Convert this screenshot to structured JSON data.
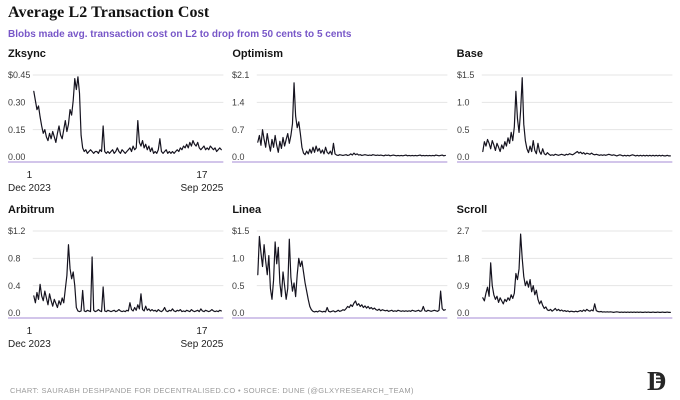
{
  "header": {
    "title": "Average L2 Transaction Cost",
    "subtitle": "Blobs made avg. transaction cost on L2 to drop from 50 cents to 5 cents"
  },
  "footer": {
    "credit": "CHART: SAURABH DESHPANDE FOR DECENTRALISED.CO • SOURCE: DUNE (@GLXYRESEARCH_TEAM)",
    "logo": "decentralised-monogram"
  },
  "colors": {
    "subtitle": "#7857c8",
    "line": "#15131f",
    "baseline": "#c4b2e4",
    "gridline": "#e4e4e4",
    "tick_text": "#3c3c3c",
    "footer_text": "#9a9a9a",
    "logo": "#262626"
  },
  "x_axis": {
    "start_tick": "1",
    "start_label": "Dec 2023",
    "end_tick": "17",
    "end_label": "Sep 2025"
  },
  "chart_data": [
    {
      "type": "line",
      "title": "Zksync",
      "unit": "USD",
      "x_range": [
        "1 Dec 2023",
        "17 Sep 2025"
      ],
      "ylim": [
        0,
        0.45
      ],
      "yticks": [
        0.45,
        0.3,
        0.15,
        0
      ],
      "ytick_labels": [
        "$0.45",
        "0.30",
        "0.15",
        "0.00"
      ],
      "show_x_axis": true,
      "grid": true,
      "legend": "none",
      "values": [
        0.36,
        0.31,
        0.26,
        0.28,
        0.22,
        0.17,
        0.13,
        0.15,
        0.11,
        0.09,
        0.13,
        0.1,
        0.14,
        0.11,
        0.08,
        0.13,
        0.17,
        0.12,
        0.1,
        0.15,
        0.2,
        0.14,
        0.18,
        0.26,
        0.23,
        0.31,
        0.43,
        0.37,
        0.44,
        0.35,
        0.12,
        0.05,
        0.03,
        0.04,
        0.02,
        0.03,
        0.04,
        0.03,
        0.02,
        0.03,
        0.03,
        0.02,
        0.04,
        0.03,
        0.17,
        0.03,
        0.02,
        0.03,
        0.02,
        0.03,
        0.04,
        0.02,
        0.03,
        0.05,
        0.03,
        0.02,
        0.04,
        0.03,
        0.02,
        0.03,
        0.04,
        0.05,
        0.03,
        0.06,
        0.04,
        0.05,
        0.2,
        0.08,
        0.06,
        0.09,
        0.05,
        0.07,
        0.04,
        0.06,
        0.03,
        0.05,
        0.02,
        0.03,
        0.02,
        0.04,
        0.1,
        0.03,
        0.02,
        0.03,
        0.04,
        0.02,
        0.03,
        0.02,
        0.03,
        0.02,
        0.03,
        0.04,
        0.03,
        0.05,
        0.04,
        0.06,
        0.05,
        0.07,
        0.05,
        0.08,
        0.06,
        0.09,
        0.07,
        0.06,
        0.08,
        0.05,
        0.04,
        0.05,
        0.06,
        0.04,
        0.05,
        0.04,
        0.06,
        0.05,
        0.04,
        0.05,
        0.03,
        0.04,
        0.05,
        0.04
      ]
    },
    {
      "type": "line",
      "title": "Optimism",
      "unit": "USD",
      "x_range": [
        "1 Dec 2023",
        "17 Sep 2025"
      ],
      "ylim": [
        0,
        2.1
      ],
      "yticks": [
        2.1,
        1.4,
        0.7,
        0
      ],
      "ytick_labels": [
        "$2.1",
        "1.4",
        "0.7",
        "0.0"
      ],
      "show_x_axis": false,
      "grid": true,
      "legend": "none",
      "values": [
        0.38,
        0.55,
        0.3,
        0.7,
        0.45,
        0.25,
        0.6,
        0.35,
        0.15,
        0.45,
        0.25,
        0.55,
        0.3,
        0.12,
        0.4,
        0.22,
        0.5,
        0.28,
        0.45,
        0.6,
        0.35,
        0.55,
        0.85,
        1.9,
        1.05,
        0.75,
        0.9,
        0.6,
        0.25,
        0.1,
        0.06,
        0.15,
        0.08,
        0.2,
        0.1,
        0.25,
        0.12,
        0.28,
        0.15,
        0.22,
        0.1,
        0.18,
        0.08,
        0.25,
        0.12,
        0.08,
        0.15,
        0.06,
        0.35,
        0.08,
        0.05,
        0.04,
        0.06,
        0.05,
        0.04,
        0.05,
        0.06,
        0.04,
        0.05,
        0.08,
        0.05,
        0.1,
        0.06,
        0.08,
        0.05,
        0.06,
        0.04,
        0.05,
        0.06,
        0.05,
        0.04,
        0.05,
        0.04,
        0.06,
        0.05,
        0.04,
        0.05,
        0.04,
        0.05,
        0.04,
        0.03,
        0.05,
        0.04,
        0.05,
        0.03,
        0.04,
        0.05,
        0.04,
        0.03,
        0.04,
        0.03,
        0.04,
        0.03,
        0.04,
        0.05,
        0.03,
        0.04,
        0.03,
        0.04,
        0.03,
        0.04,
        0.03,
        0.04,
        0.05,
        0.03,
        0.04,
        0.03,
        0.04,
        0.03,
        0.04,
        0.03,
        0.04,
        0.03,
        0.05,
        0.04,
        0.03,
        0.04,
        0.05,
        0.03,
        0.04
      ]
    },
    {
      "type": "line",
      "title": "Base",
      "unit": "USD",
      "x_range": [
        "1 Dec 2023",
        "17 Sep 2025"
      ],
      "ylim": [
        0,
        1.5
      ],
      "yticks": [
        1.5,
        1.0,
        0.5,
        0
      ],
      "ytick_labels": [
        "$1.5",
        "1.0",
        "0.5",
        "0.0"
      ],
      "show_x_axis": false,
      "grid": true,
      "legend": "none",
      "values": [
        0.1,
        0.28,
        0.2,
        0.32,
        0.25,
        0.15,
        0.3,
        0.22,
        0.12,
        0.25,
        0.18,
        0.1,
        0.22,
        0.15,
        0.28,
        0.2,
        0.35,
        0.25,
        0.45,
        0.3,
        0.55,
        1.2,
        0.7,
        0.45,
        0.85,
        1.45,
        0.6,
        0.3,
        0.15,
        0.08,
        0.2,
        0.1,
        0.3,
        0.12,
        0.06,
        0.25,
        0.1,
        0.05,
        0.15,
        0.06,
        0.04,
        0.08,
        0.05,
        0.03,
        0.04,
        0.03,
        0.05,
        0.04,
        0.03,
        0.04,
        0.05,
        0.04,
        0.03,
        0.05,
        0.04,
        0.06,
        0.05,
        0.04,
        0.06,
        0.08,
        0.1,
        0.07,
        0.09,
        0.06,
        0.08,
        0.05,
        0.07,
        0.06,
        0.05,
        0.07,
        0.05,
        0.04,
        0.05,
        0.04,
        0.03,
        0.04,
        0.03,
        0.04,
        0.03,
        0.04,
        0.05,
        0.04,
        0.03,
        0.04,
        0.03,
        0.02,
        0.03,
        0.04,
        0.03,
        0.02,
        0.03,
        0.02,
        0.03,
        0.02,
        0.03,
        0.04,
        0.03,
        0.02,
        0.03,
        0.02,
        0.03,
        0.02,
        0.03,
        0.02,
        0.03,
        0.02,
        0.03,
        0.02,
        0.03,
        0.02,
        0.03,
        0.02,
        0.03,
        0.02,
        0.03,
        0.02,
        0.02,
        0.03,
        0.02,
        0.02
      ]
    },
    {
      "type": "line",
      "title": "Arbitrum",
      "unit": "USD",
      "x_range": [
        "1 Dec 2023",
        "17 Sep 2025"
      ],
      "ylim": [
        0,
        1.2
      ],
      "yticks": [
        1.2,
        0.8,
        0.4,
        0
      ],
      "ytick_labels": [
        "$1.2",
        "0.8",
        "0.4",
        "0.0"
      ],
      "show_x_axis": true,
      "grid": true,
      "legend": "none",
      "values": [
        0.25,
        0.15,
        0.3,
        0.2,
        0.42,
        0.25,
        0.18,
        0.32,
        0.22,
        0.12,
        0.28,
        0.18,
        0.1,
        0.2,
        0.14,
        0.08,
        0.18,
        0.12,
        0.22,
        0.15,
        0.35,
        0.55,
        1.0,
        0.65,
        0.5,
        0.6,
        0.4,
        0.08,
        0.03,
        0.02,
        0.03,
        0.33,
        0.03,
        0.02,
        0.04,
        0.03,
        0.02,
        0.82,
        0.04,
        0.02,
        0.03,
        0.05,
        0.03,
        0.02,
        0.38,
        0.03,
        0.02,
        0.04,
        0.03,
        0.02,
        0.03,
        0.04,
        0.02,
        0.03,
        0.05,
        0.03,
        0.02,
        0.03,
        0.02,
        0.04,
        0.03,
        0.15,
        0.05,
        0.03,
        0.08,
        0.04,
        0.12,
        0.06,
        0.28,
        0.05,
        0.03,
        0.1,
        0.04,
        0.06,
        0.03,
        0.05,
        0.03,
        0.04,
        0.02,
        0.05,
        0.03,
        0.02,
        0.04,
        0.08,
        0.03,
        0.02,
        0.04,
        0.03,
        0.06,
        0.03,
        0.02,
        0.04,
        0.03,
        0.05,
        0.02,
        0.03,
        0.02,
        0.04,
        0.03,
        0.02,
        0.05,
        0.03,
        0.02,
        0.03,
        0.04,
        0.02,
        0.06,
        0.03,
        0.02,
        0.04,
        0.03,
        0.02,
        0.03,
        0.05,
        0.03,
        0.02,
        0.03,
        0.02,
        0.04,
        0.03
      ]
    },
    {
      "type": "line",
      "title": "Linea",
      "unit": "USD",
      "x_range": [
        "1 Dec 2023",
        "17 Sep 2025"
      ],
      "ylim": [
        0,
        1.5
      ],
      "yticks": [
        1.5,
        1.0,
        0.5,
        0
      ],
      "ytick_labels": [
        "$1.5",
        "1.0",
        "0.5",
        "0.0"
      ],
      "show_x_axis": false,
      "grid": true,
      "legend": "none",
      "values": [
        0.7,
        1.4,
        1.1,
        0.85,
        1.25,
        0.95,
        0.7,
        1.05,
        0.45,
        0.25,
        0.6,
        1.3,
        0.9,
        1.2,
        0.55,
        0.3,
        0.75,
        0.5,
        0.25,
        0.45,
        1.35,
        0.65,
        0.4,
        0.55,
        0.3,
        0.7,
        1.0,
        0.85,
        0.95,
        0.75,
        0.55,
        0.4,
        0.25,
        0.12,
        0.06,
        0.03,
        0.02,
        0.03,
        0.02,
        0.04,
        0.03,
        0.02,
        0.03,
        0.02,
        0.1,
        0.03,
        0.02,
        0.03,
        0.04,
        0.02,
        0.03,
        0.05,
        0.03,
        0.04,
        0.06,
        0.05,
        0.08,
        0.12,
        0.1,
        0.15,
        0.12,
        0.18,
        0.22,
        0.14,
        0.17,
        0.12,
        0.15,
        0.1,
        0.13,
        0.09,
        0.12,
        0.08,
        0.1,
        0.07,
        0.09,
        0.06,
        0.05,
        0.07,
        0.04,
        0.06,
        0.05,
        0.04,
        0.05,
        0.03,
        0.04,
        0.05,
        0.03,
        0.04,
        0.03,
        0.05,
        0.04,
        0.03,
        0.04,
        0.03,
        0.04,
        0.03,
        0.04,
        0.03,
        0.05,
        0.04,
        0.03,
        0.04,
        0.05,
        0.03,
        0.04,
        0.12,
        0.04,
        0.03,
        0.05,
        0.04,
        0.03,
        0.04,
        0.05,
        0.04,
        0.03,
        0.05,
        0.4,
        0.08,
        0.05,
        0.06
      ]
    },
    {
      "type": "line",
      "title": "Scroll",
      "unit": "USD",
      "x_range": [
        "1 Dec 2023",
        "17 Sep 2025"
      ],
      "ylim": [
        0,
        2.7
      ],
      "yticks": [
        2.7,
        1.8,
        0.9,
        0
      ],
      "ytick_labels": [
        "2.7",
        "1.8",
        "0.9",
        "0.0"
      ],
      "show_x_axis": false,
      "grid": true,
      "legend": "none",
      "values": [
        0.5,
        0.4,
        0.65,
        0.85,
        0.55,
        1.65,
        0.9,
        0.6,
        0.45,
        0.55,
        0.35,
        0.5,
        0.4,
        0.3,
        0.45,
        0.38,
        0.5,
        0.42,
        0.6,
        0.48,
        0.65,
        1.3,
        1.1,
        1.45,
        2.6,
        1.8,
        1.2,
        0.9,
        1.05,
        0.85,
        1.1,
        0.7,
        0.9,
        0.6,
        0.75,
        0.45,
        0.3,
        0.4,
        0.25,
        0.15,
        0.2,
        0.1,
        0.08,
        0.12,
        0.06,
        0.1,
        0.15,
        0.08,
        0.12,
        0.07,
        0.1,
        0.06,
        0.08,
        0.05,
        0.07,
        0.04,
        0.06,
        0.05,
        0.04,
        0.06,
        0.04,
        0.06,
        0.08,
        0.05,
        0.1,
        0.06,
        0.12,
        0.08,
        0.06,
        0.1,
        0.07,
        0.3,
        0.08,
        0.05,
        0.04,
        0.05,
        0.03,
        0.04,
        0.03,
        0.04,
        0.03,
        0.04,
        0.03,
        0.02,
        0.03,
        0.04,
        0.03,
        0.02,
        0.03,
        0.02,
        0.03,
        0.02,
        0.03,
        0.02,
        0.03,
        0.02,
        0.03,
        0.02,
        0.03,
        0.02,
        0.03,
        0.02,
        0.02,
        0.03,
        0.02,
        0.03,
        0.02,
        0.02,
        0.03,
        0.02,
        0.02,
        0.03,
        0.02,
        0.02,
        0.03,
        0.02,
        0.02,
        0.03,
        0.02,
        0.02
      ]
    }
  ]
}
